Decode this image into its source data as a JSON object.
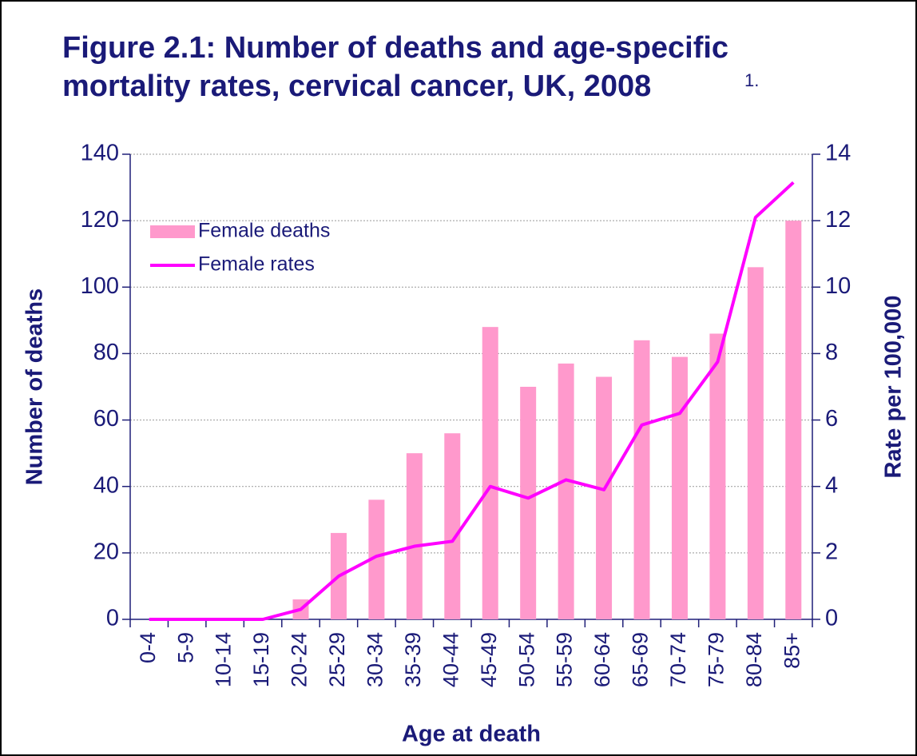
{
  "chart_data": {
    "type": "bar_line",
    "title": [
      "Figure 2.1: Number of deaths and age-specific",
      "mortality rates, cervical cancer, UK, 2008"
    ],
    "title_note": "1.",
    "x_label": "Age at death",
    "y_label": "Number of deaths",
    "y2_label": "Rate per 100,000",
    "categories": [
      "0-4",
      "5-9",
      "10-14",
      "15-19",
      "20-24",
      "25-29",
      "30-34",
      "35-39",
      "40-44",
      "45-49",
      "50-54",
      "55-59",
      "60-64",
      "65-69",
      "70-74",
      "75-79",
      "80-84",
      "85+"
    ],
    "series": [
      {
        "name": "Female deaths",
        "type": "bar",
        "color": "#ff99cc",
        "values": [
          0,
          0,
          0,
          0,
          6,
          26,
          36,
          50,
          56,
          88,
          70,
          77,
          73,
          84,
          79,
          86,
          106,
          120
        ]
      },
      {
        "name": "Female rates",
        "type": "line",
        "axis": "y2",
        "color": "#ff00ff",
        "values": [
          0,
          0,
          0,
          0,
          0.3,
          1.3,
          1.9,
          2.2,
          2.35,
          4.0,
          3.65,
          4.2,
          3.9,
          5.85,
          6.2,
          7.75,
          12.1,
          13.15
        ]
      }
    ],
    "ylim": [
      0,
      140
    ],
    "yticks": [
      0,
      20,
      40,
      60,
      80,
      100,
      120,
      140
    ],
    "y2lim": [
      0,
      14
    ],
    "y2ticks": [
      0,
      2,
      4,
      6,
      8,
      10,
      12,
      14
    ],
    "grid": true,
    "legend": "upper left"
  }
}
